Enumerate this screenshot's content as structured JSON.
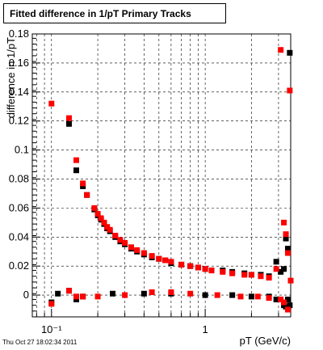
{
  "title": "Fitted difference in 1/pT  Primary Tracks",
  "timestamp": "Thu Oct 27 18:02:34 2011",
  "chart_data": {
    "type": "scatter",
    "title": "Fitted difference in 1/pT  Primary Tracks",
    "xlabel": "pT (GeV/c)",
    "ylabel": "difference in 1/pT",
    "x_scale": "log",
    "xlim": [
      0.075,
      3.6
    ],
    "ylim": [
      -0.015,
      0.18
    ],
    "x_ticks": [
      {
        "value": 0.1,
        "label": "10⁻¹"
      },
      {
        "value": 1,
        "label": "1"
      }
    ],
    "y_ticks": [
      0,
      0.02,
      0.04,
      0.06,
      0.08,
      0.1,
      0.12,
      0.14,
      0.16,
      0.18
    ],
    "y_tick_labels": [
      "0",
      "0.02",
      "0.04",
      "0.06",
      "0.08",
      "0.1",
      "0.12",
      "0.14",
      "0.16",
      "0.18"
    ],
    "grid": true,
    "series": [
      {
        "color": "#000000",
        "points": [
          [
            0.1,
            -0.005
          ],
          [
            0.11,
            0.001
          ],
          [
            0.13,
            0.118
          ],
          [
            0.13,
            0.003
          ],
          [
            0.145,
            0.086
          ],
          [
            0.145,
            -0.003
          ],
          [
            0.16,
            0.075
          ],
          [
            0.16,
            -0.001
          ],
          [
            0.17,
            0.069
          ],
          [
            0.19,
            0.059
          ],
          [
            0.2,
            0.055
          ],
          [
            0.21,
            0.052
          ],
          [
            0.22,
            0.049
          ],
          [
            0.23,
            0.046
          ],
          [
            0.24,
            0.044
          ],
          [
            0.26,
            0.04
          ],
          [
            0.28,
            0.037
          ],
          [
            0.3,
            0.035
          ],
          [
            0.33,
            0.032
          ],
          [
            0.36,
            0.03
          ],
          [
            0.4,
            0.028
          ],
          [
            0.45,
            0.026
          ],
          [
            0.5,
            0.025
          ],
          [
            0.55,
            0.024
          ],
          [
            0.6,
            0.022
          ],
          [
            0.7,
            0.021
          ],
          [
            0.8,
            0.02
          ],
          [
            0.9,
            0.019
          ],
          [
            1.0,
            0.018
          ],
          [
            1.1,
            0.017
          ],
          [
            1.3,
            0.017
          ],
          [
            1.5,
            0.016
          ],
          [
            1.8,
            0.015
          ],
          [
            2.0,
            0.014
          ],
          [
            2.3,
            0.014
          ],
          [
            2.6,
            0.013
          ],
          [
            2.9,
            0.023
          ],
          [
            3.1,
            0.016
          ],
          [
            3.25,
            0.018
          ],
          [
            3.35,
            0.039
          ],
          [
            3.45,
            0.032
          ],
          [
            3.55,
            0.167
          ],
          [
            0.25,
            0.001
          ],
          [
            0.4,
            0.001
          ],
          [
            0.6,
            0.001
          ],
          [
            1.0,
            0.0
          ],
          [
            1.5,
            0.0
          ],
          [
            2.0,
            -0.001
          ],
          [
            2.6,
            -0.001
          ],
          [
            2.9,
            -0.003
          ],
          [
            3.25,
            -0.007
          ],
          [
            3.35,
            -0.008
          ],
          [
            3.45,
            -0.003
          ],
          [
            3.55,
            -0.007
          ]
        ]
      },
      {
        "color": "#ff0000",
        "points": [
          [
            0.1,
            0.132
          ],
          [
            0.1,
            -0.006
          ],
          [
            0.13,
            0.122
          ],
          [
            0.13,
            0.003
          ],
          [
            0.145,
            0.093
          ],
          [
            0.145,
            -0.001
          ],
          [
            0.16,
            0.077
          ],
          [
            0.16,
            -0.001
          ],
          [
            0.17,
            0.069
          ],
          [
            0.19,
            0.06
          ],
          [
            0.2,
            0.056
          ],
          [
            0.21,
            0.053
          ],
          [
            0.22,
            0.05
          ],
          [
            0.23,
            0.047
          ],
          [
            0.24,
            0.045
          ],
          [
            0.26,
            0.041
          ],
          [
            0.28,
            0.038
          ],
          [
            0.3,
            0.036
          ],
          [
            0.33,
            0.033
          ],
          [
            0.36,
            0.031
          ],
          [
            0.4,
            0.029
          ],
          [
            0.45,
            0.027
          ],
          [
            0.5,
            0.025
          ],
          [
            0.55,
            0.024
          ],
          [
            0.6,
            0.023
          ],
          [
            0.7,
            0.021
          ],
          [
            0.8,
            0.02
          ],
          [
            0.9,
            0.019
          ],
          [
            1.0,
            0.018
          ],
          [
            1.1,
            0.017
          ],
          [
            1.3,
            0.016
          ],
          [
            1.5,
            0.015
          ],
          [
            1.8,
            0.014
          ],
          [
            2.0,
            0.014
          ],
          [
            2.3,
            0.013
          ],
          [
            2.6,
            0.012
          ],
          [
            2.9,
            0.018
          ],
          [
            3.1,
            0.169
          ],
          [
            3.25,
            0.05
          ],
          [
            3.35,
            0.042
          ],
          [
            3.45,
            0.029
          ],
          [
            3.55,
            0.141
          ],
          [
            3.6,
            0.01
          ],
          [
            0.2,
            -0.001
          ],
          [
            0.3,
            0.0
          ],
          [
            0.45,
            0.002
          ],
          [
            0.6,
            0.002
          ],
          [
            0.8,
            0.001
          ],
          [
            1.2,
            0.0
          ],
          [
            1.7,
            -0.001
          ],
          [
            2.2,
            -0.001
          ],
          [
            2.6,
            -0.002
          ],
          [
            3.1,
            -0.003
          ],
          [
            3.25,
            -0.005
          ],
          [
            3.45,
            -0.01
          ]
        ]
      }
    ]
  }
}
